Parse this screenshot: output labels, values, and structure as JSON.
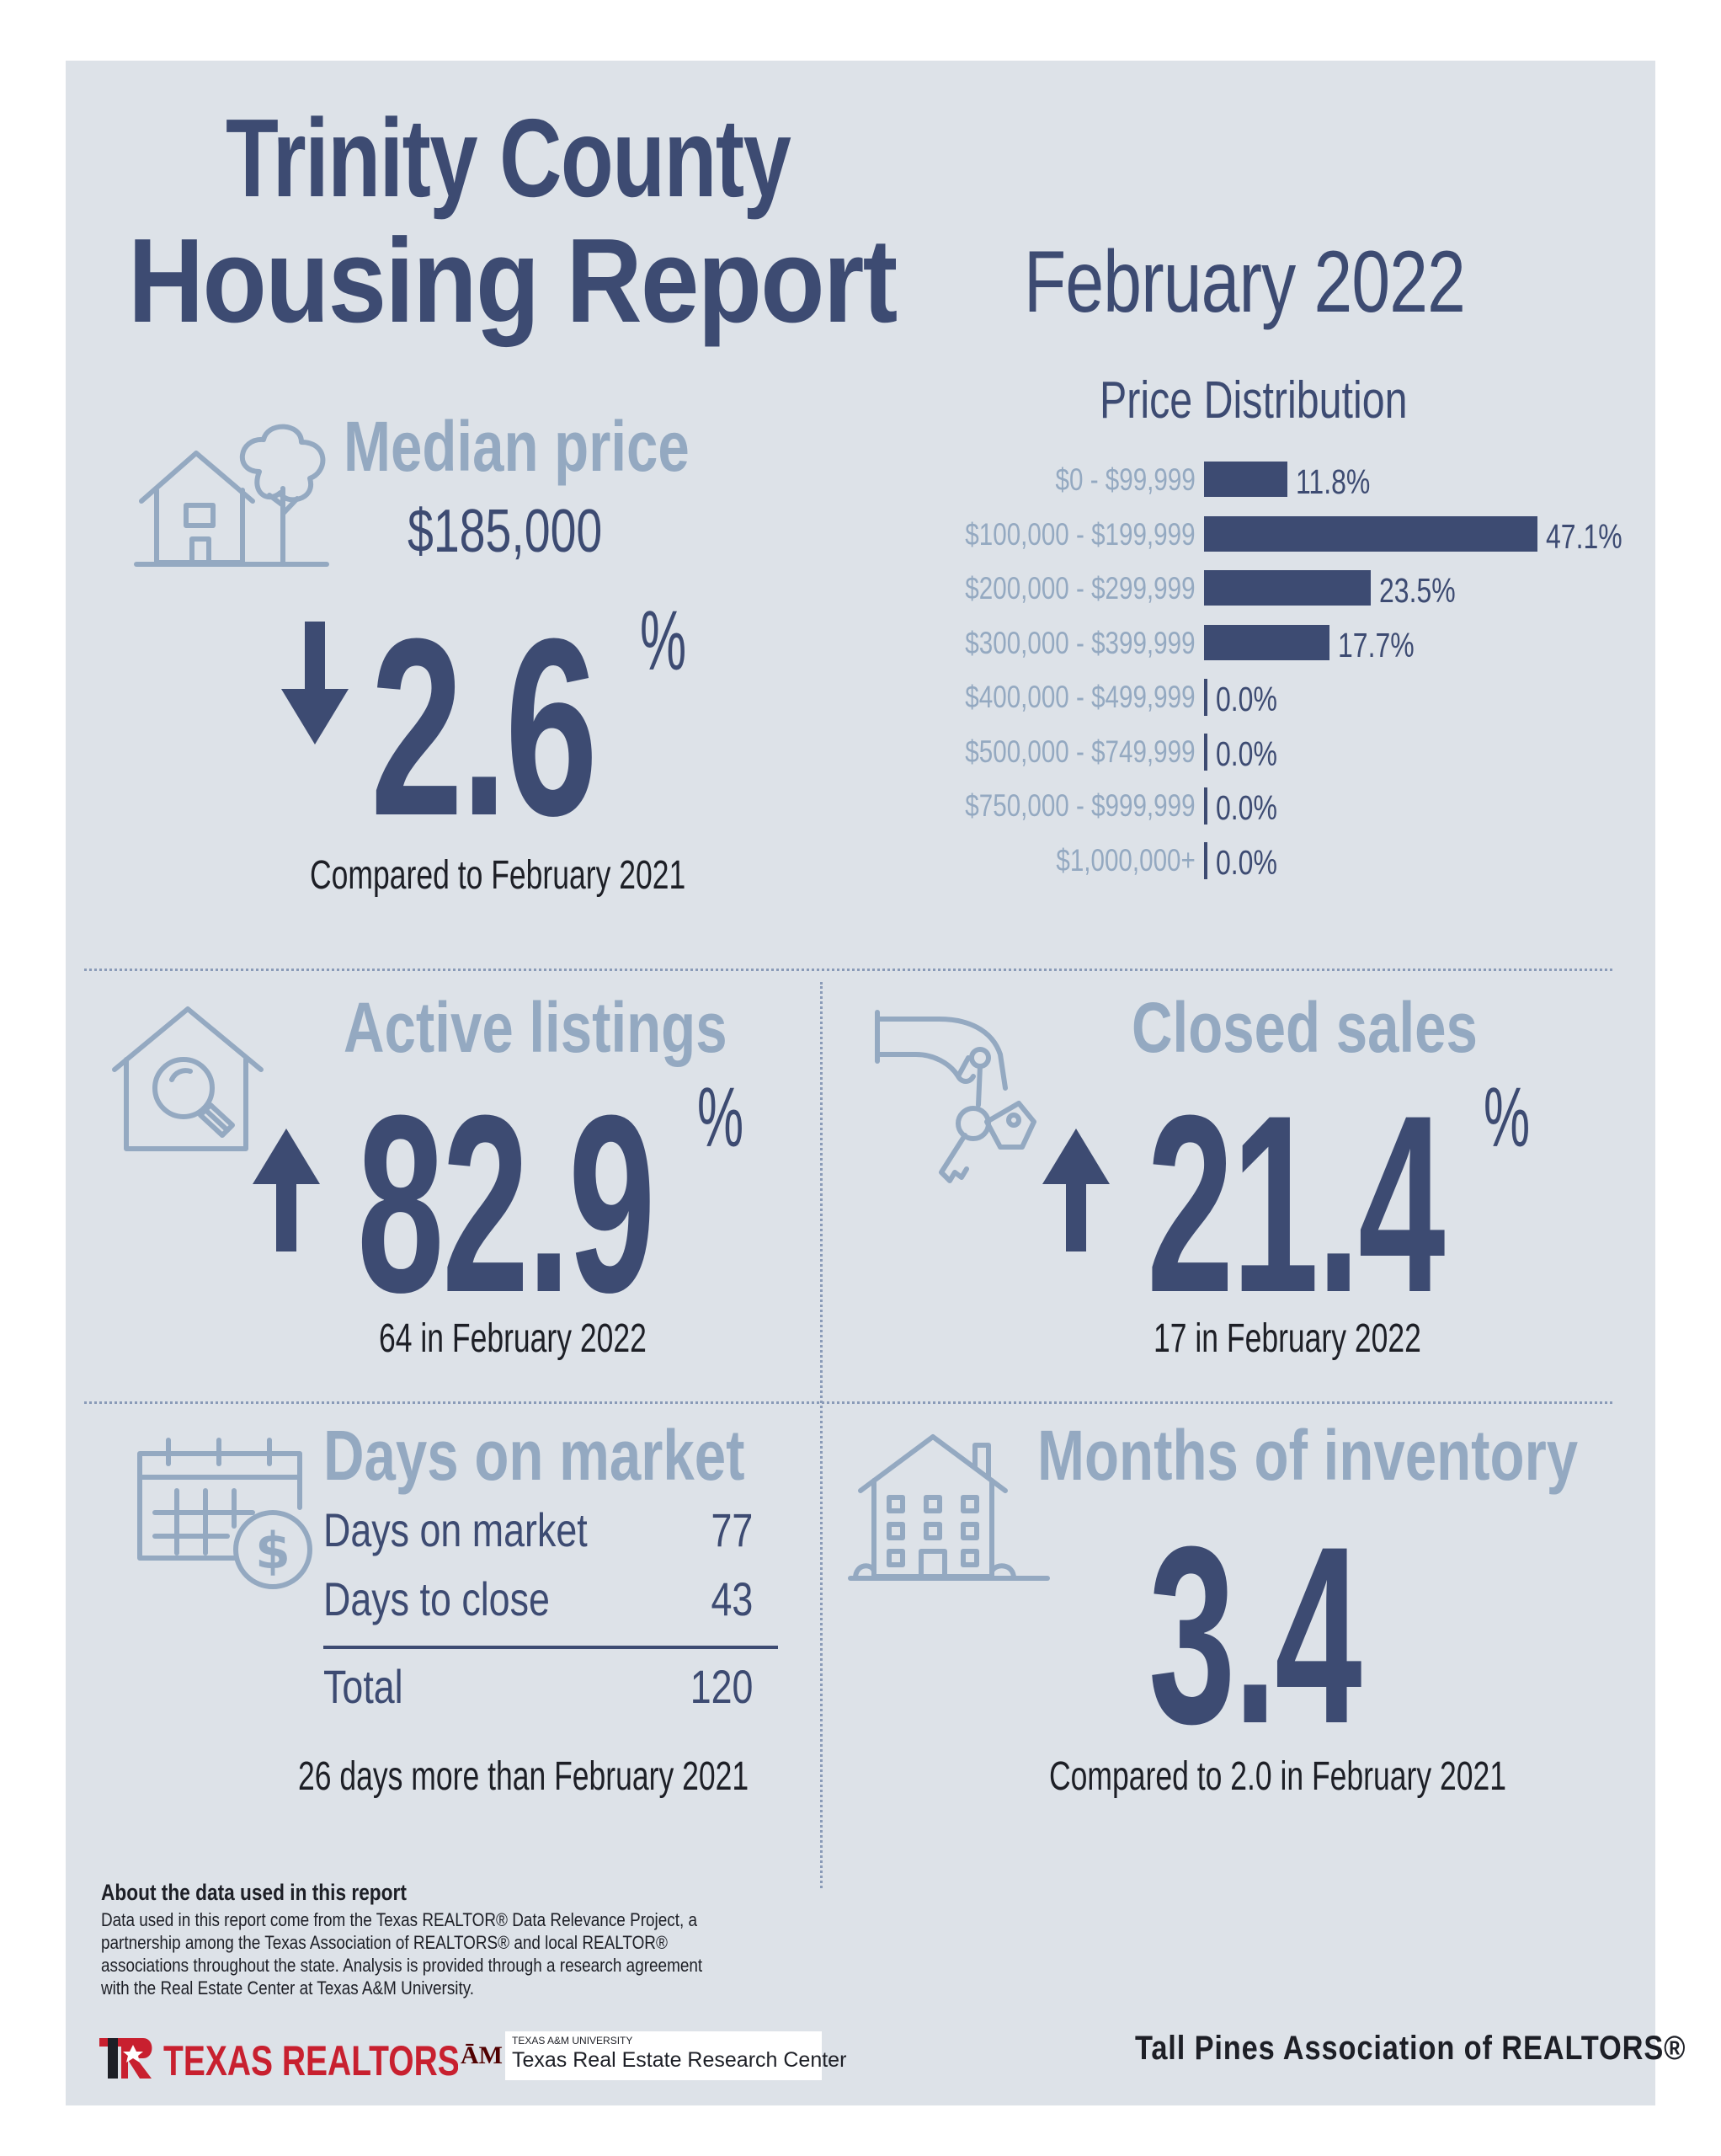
{
  "header": {
    "title_line1": "Trinity County",
    "title_line2": "Housing Report",
    "period": "February 2022"
  },
  "median_price": {
    "title": "Median price",
    "value": "$185,000",
    "change": "2.6",
    "change_direction": "down",
    "percent_sign": "%",
    "caption": "Compared to February 2021",
    "icon": "house-tree-icon"
  },
  "price_distribution": {
    "title": "Price Distribution",
    "rows": [
      {
        "range": "$0 - $99,999",
        "label": "11.8%"
      },
      {
        "range": "$100,000 - $199,999",
        "label": "47.1%"
      },
      {
        "range": "$200,000 - $299,999",
        "label": "23.5%"
      },
      {
        "range": "$300,000 - $399,999",
        "label": "17.7%"
      },
      {
        "range": "$400,000 - $499,999",
        "label": "0.0%"
      },
      {
        "range": "$500,000 - $749,999",
        "label": "0.0%"
      },
      {
        "range": "$750,000 - $999,999",
        "label": "0.0%"
      },
      {
        "range": "$1,000,000+",
        "label": "0.0%"
      }
    ]
  },
  "chart_data": {
    "type": "bar",
    "orientation": "horizontal",
    "title": "Price Distribution",
    "categories": [
      "$0 - $99,999",
      "$100,000 - $199,999",
      "$200,000 - $299,999",
      "$300,000 - $399,999",
      "$400,000 - $499,999",
      "$500,000 - $749,999",
      "$750,000 - $999,999",
      "$1,000,000+"
    ],
    "values": [
      11.8,
      47.1,
      23.5,
      17.7,
      0.0,
      0.0,
      0.0,
      0.0
    ],
    "unit": "%",
    "xlim": [
      0,
      47.1
    ],
    "grid": false,
    "legend": "none",
    "color": "#3d4b72"
  },
  "active_listings": {
    "title": "Active listings",
    "change": "82.9",
    "change_direction": "up",
    "percent_sign": "%",
    "caption": "64 in February 2022",
    "icon": "house-magnifier-icon"
  },
  "closed_sales": {
    "title": "Closed sales",
    "change": "21.4",
    "change_direction": "up",
    "percent_sign": "%",
    "caption": "17 in February 2022",
    "icon": "hand-keys-icon"
  },
  "days_on_market": {
    "title": "Days on market",
    "rows": [
      {
        "label": "Days on market",
        "value": "77"
      },
      {
        "label": "Days to close",
        "value": "43"
      }
    ],
    "total_label": "Total",
    "total_value": "120",
    "caption": "26 days more than February 2021",
    "icon": "calendar-dollar-icon"
  },
  "months_inventory": {
    "title": "Months of inventory",
    "value": "3.4",
    "caption": "Compared to 2.0 in February 2021",
    "icon": "apartment-building-icon"
  },
  "footer": {
    "about_title": "About the data used in this report",
    "about_text": "Data used in this report come from the Texas REALTOR® Data Relevance Project, a partnership among the Texas Association of REALTORS® and local REALTOR® associations throughout the state. Analysis is provided through a research agreement with the Real Estate Center at Texas A&M University.",
    "logo_texas_realtors": "TEXAS REALTORS",
    "logo_tamu_small": "TEXAS A&M UNIVERSITY",
    "logo_tamu": "Texas Real Estate Research Center",
    "association": "Tall Pines Association of REALTORS®"
  },
  "colors": {
    "navy": "#3d4b72",
    "light_blue": "#94a9c1",
    "background": "#dde2e8",
    "dark_text": "#1d1f26",
    "tx_red": "#c8202f",
    "tamu_maroon": "#500000"
  }
}
